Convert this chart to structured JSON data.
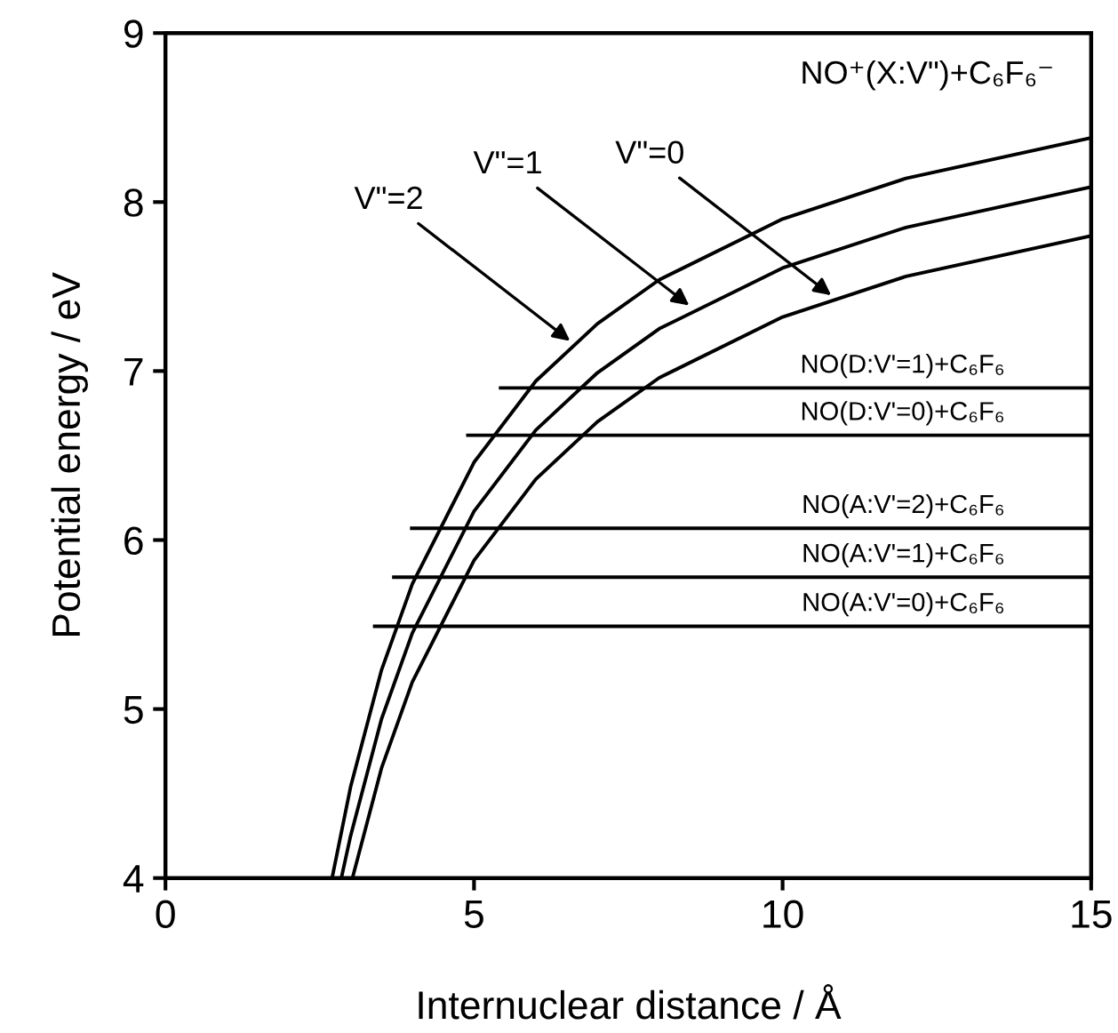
{
  "chart_data": {
    "type": "line",
    "xlabel": "Internuclear distance / Å",
    "ylabel": "Potential energy / eV",
    "xlim": [
      0,
      15
    ],
    "xticks": [
      0,
      5,
      10,
      15
    ],
    "ylim": [
      4,
      9
    ],
    "yticks": [
      4,
      5,
      6,
      7,
      8,
      9
    ],
    "grid": false,
    "legend": false,
    "marker": "none",
    "line_style": "solid",
    "series": [
      {
        "color": "#000000",
        "x": [
          2.7,
          3,
          3.5,
          4,
          5,
          6,
          7,
          8,
          10,
          12,
          15
        ],
        "values": [
          4.0,
          4.54,
          5.23,
          5.74,
          6.46,
          6.94,
          7.28,
          7.54,
          7.9,
          8.14,
          8.38
        ]
      },
      {
        "color": "#000000",
        "x": [
          2.85,
          3,
          3.5,
          4,
          5,
          6,
          7,
          8,
          10,
          12,
          15
        ],
        "values": [
          4.0,
          4.25,
          4.94,
          5.45,
          6.17,
          6.65,
          6.99,
          7.25,
          7.61,
          7.85,
          8.09
        ]
      },
      {
        "color": "#000000",
        "x": [
          3.03,
          3.5,
          4,
          5,
          6,
          7,
          8,
          10,
          12,
          15
        ],
        "values": [
          4.0,
          4.65,
          5.16,
          5.88,
          6.36,
          6.7,
          6.96,
          7.32,
          7.56,
          7.8
        ]
      },
      {
        "name": "NO(D:V'=1)+C₆F₆",
        "color": "#000000",
        "x": [
          5.43,
          15
        ],
        "values": [
          6.9,
          6.9
        ]
      },
      {
        "name": "NO(D:V'=0)+C₆F₆",
        "color": "#000000",
        "x": [
          4.9,
          15
        ],
        "values": [
          6.62,
          6.62
        ]
      },
      {
        "name": "NO(A:V'=2)+C₆F₆",
        "color": "#000000",
        "x": [
          3.99,
          15
        ],
        "values": [
          6.07,
          6.07
        ]
      },
      {
        "name": "NO(A:V'=1)+C₆F₆",
        "color": "#000000",
        "x": [
          3.7,
          15
        ],
        "values": [
          5.78,
          5.78
        ]
      },
      {
        "name": "NO(A:V'=0)+C₆F₆",
        "color": "#000000",
        "x": [
          3.39,
          15
        ],
        "values": [
          5.49,
          5.49
        ]
      }
    ],
    "annotations": [
      "NO⁺(X:V\")+C₆F₆⁻",
      {
        "text": "V\"=2",
        "x": 6.62,
        "y": 7.16
      },
      {
        "text": "V\"=1",
        "x": 8.55,
        "y": 7.37
      },
      {
        "text": "V\"=0",
        "x": 10.85,
        "y": 7.43
      }
    ]
  }
}
